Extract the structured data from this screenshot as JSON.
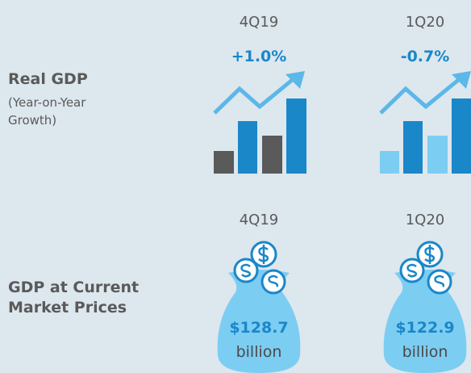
{
  "real_gdp": {
    "label": "Real GDP",
    "sublabel": "(Year-on-Year Growth)",
    "periods": [
      {
        "period": "4Q19",
        "growth": "+1.0%"
      },
      {
        "period": "1Q20",
        "growth": "-0.7%"
      }
    ]
  },
  "gdp_current": {
    "label": "GDP at Current Market Prices",
    "periods": [
      {
        "period": "4Q19",
        "amount": "$128.7",
        "unit": "billion"
      },
      {
        "period": "1Q20",
        "amount": "$122.9",
        "unit": "billion"
      }
    ]
  }
}
